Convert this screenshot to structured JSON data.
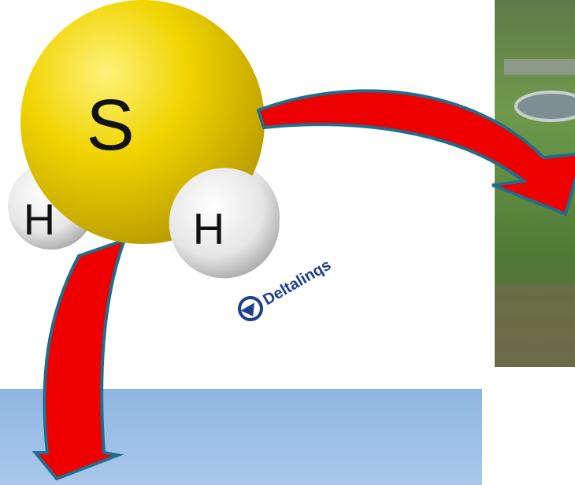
{
  "molecule": {
    "atoms": [
      "S",
      "H",
      "H"
    ]
  },
  "logo": {
    "text": "Deltalinqs"
  }
}
